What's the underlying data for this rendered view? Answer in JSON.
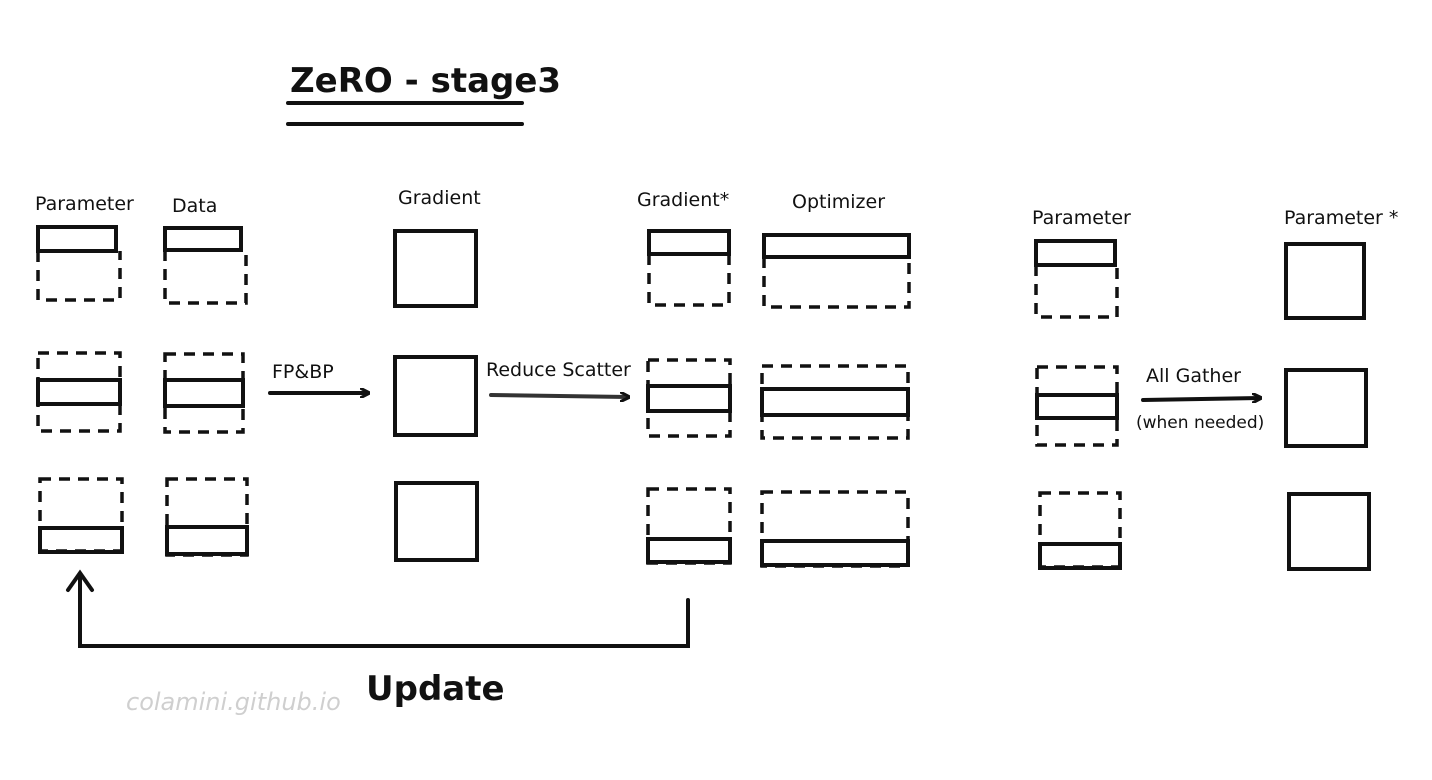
{
  "title": "ZeRO - stage3",
  "labels": {
    "parameter": "Parameter",
    "data": "Data",
    "gradient": "Gradient",
    "gradient_star": "Gradient*",
    "optimizer": "Optimizer",
    "parameter_right": "Parameter",
    "parameter_star": "Parameter *"
  },
  "arrows": {
    "fp_bp": "FP&BP",
    "reduce_scatter": "Reduce Scatter",
    "all_gather": "All Gather",
    "when_needed": "(when needed)",
    "update": "Update"
  },
  "watermark": "colamini.github.io",
  "colors": {
    "parameter": "#88d4bd",
    "data": "#dba7b0",
    "gradient_1": "#8cc2cf",
    "gradient_2": "#d7c3a8",
    "gradient_3": "#e4b26f",
    "gradient_star": "#b6bfaa",
    "optimizer": "#cfe27c"
  }
}
